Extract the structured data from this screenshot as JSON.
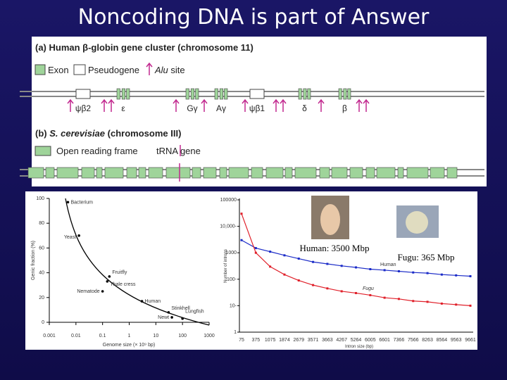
{
  "title": "Noncoding DNA is part of Answer",
  "panel_a": {
    "title": "(a) Human β-globin gene cluster (chromosome 11)",
    "legend": {
      "exon": "Exon",
      "pseudogene": "Pseudogene",
      "alu_italic": "Alu",
      "alu_rest": "site"
    },
    "genes": [
      "ψβ2",
      "ε",
      "Gγ",
      "Aγ",
      "ψβ1",
      "δ",
      "β"
    ]
  },
  "panel_b": {
    "label": "(b)",
    "organism": "S. cerevisiae",
    "chromosome": "(chromosome III)",
    "legend": {
      "orf": "Open reading frame",
      "trna": "tRNA gene"
    }
  },
  "photos": {
    "human": "Human: 3500 Mbp",
    "fugu": "Fugu: 365 Mbp"
  },
  "chart_data": [
    {
      "type": "scatter",
      "log_x": true,
      "x": [
        0.005,
        0.013,
        0.18,
        0.15,
        0.1,
        3,
        30,
        40,
        100
      ],
      "values": [
        97,
        70,
        37,
        33,
        25,
        17,
        8,
        4,
        3
      ],
      "point_labels": [
        "Bacterium",
        "Yeast",
        "Fruitfly",
        "Thale cress",
        "Nematode",
        "Human",
        "Stinkhell",
        "Newt",
        "Lungfish"
      ],
      "xlim": [
        0.001,
        1000
      ],
      "ylim": [
        0,
        100
      ],
      "xticks": [
        0.001,
        0.01,
        0.1,
        1,
        10,
        100,
        1000
      ],
      "yticks": [
        0,
        20,
        40,
        60,
        80,
        100
      ],
      "xlabel": "Genome size (× 10⁹ bp)",
      "ylabel": "Genic fraction (%)",
      "color": "#000000"
    },
    {
      "type": "line",
      "log_y": true,
      "categories": [
        "75",
        "375",
        "1075",
        "1874",
        "2679",
        "3571",
        "3663",
        "4267",
        "5264",
        "6005",
        "6601",
        "7366",
        "7566",
        "8263",
        "8564",
        "9563",
        "9661"
      ],
      "series": [
        {
          "name": "Human",
          "color": "#1c2cc8",
          "values": [
            3000,
            1500,
            1100,
            800,
            600,
            450,
            380,
            320,
            280,
            240,
            220,
            200,
            180,
            170,
            150,
            140,
            130
          ]
        },
        {
          "name": "Fugu",
          "color": "#e0202a",
          "values": [
            30000,
            1000,
            300,
            150,
            90,
            60,
            45,
            35,
            30,
            25,
            20,
            18,
            15,
            14,
            12,
            11,
            10
          ]
        }
      ],
      "ylim": [
        1,
        100000
      ],
      "yticks": [
        1,
        {
          "value": 10,
          "label": "10-"
        },
        {
          "value": 100,
          "label": "100-"
        },
        1000,
        {
          "value": 10000,
          "label": "10,000-"
        },
        100000
      ],
      "xlabel": "Intron size (bp)",
      "ylabel": "Number of introns"
    }
  ]
}
